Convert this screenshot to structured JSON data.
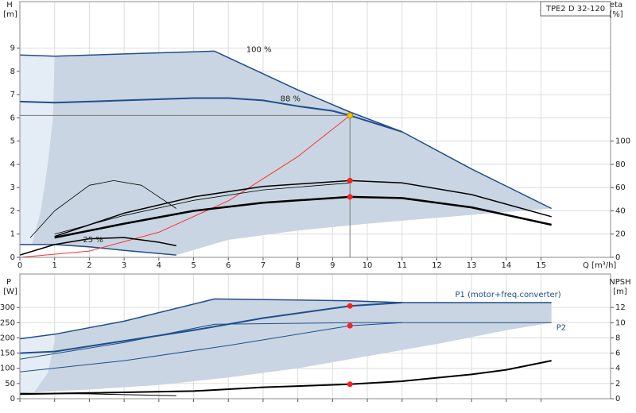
{
  "chart_data": [
    {
      "type": "line",
      "title": "TPE2 D 32-120",
      "ylabel": "H",
      "yunit": "[m]",
      "y2label": "eta",
      "y2unit": "[%]",
      "xlabel": "Q [m³/h]",
      "xlim": [
        0,
        17
      ],
      "xticks": [
        0,
        1,
        2,
        3,
        4,
        5,
        6,
        7,
        8,
        9,
        10,
        11,
        12,
        13,
        14,
        15
      ],
      "ylim": [
        0,
        11
      ],
      "yticks": [
        0,
        1,
        2,
        3,
        4,
        5,
        6,
        7,
        8,
        9
      ],
      "y2lim": [
        0,
        220
      ],
      "y2ticks": [
        0,
        20,
        40,
        60,
        80,
        100
      ],
      "grid": true,
      "series": [
        {
          "kind": "area",
          "color": "#e4edf6",
          "x": [
            0,
            1,
            0.95,
            0.8,
            0.6,
            0.35,
            0
          ],
          "values": [
            8.7,
            8.65,
            6,
            4,
            2,
            0.55,
            0.55
          ]
        },
        {
          "kind": "area",
          "color": "#c9d5e2",
          "x": [
            1,
            3,
            5.6,
            8,
            9.5,
            11,
            13,
            15.3,
            14,
            12,
            10,
            8,
            6,
            4.5,
            3,
            1.3,
            0.35,
            0.6,
            0.8,
            0.95
          ],
          "values": [
            8.65,
            8.75,
            8.87,
            7.2,
            6.25,
            5.4,
            3.8,
            2.1,
            1.95,
            1.7,
            1.45,
            1.15,
            0.75,
            0.1,
            0.3,
            0.5,
            0.55,
            2,
            4,
            6
          ]
        },
        {
          "name": "100 %",
          "kind": "line",
          "color": "#1f4e8c",
          "width": 1.5,
          "x": [
            0,
            1,
            3,
            5.6,
            8,
            9.5,
            11,
            13,
            15.3
          ],
          "values": [
            8.7,
            8.65,
            8.75,
            8.87,
            7.2,
            6.25,
            5.4,
            3.8,
            2.1
          ]
        },
        {
          "name": "88 %",
          "kind": "line",
          "color": "#1f4e8c",
          "width": 2,
          "x": [
            0,
            1,
            3,
            5,
            6,
            7,
            8,
            9,
            9.5,
            11
          ],
          "values": [
            6.7,
            6.65,
            6.75,
            6.85,
            6.85,
            6.75,
            6.5,
            6.3,
            6.1,
            5.4
          ]
        },
        {
          "name": "25 %",
          "kind": "line",
          "color": "#1f4e8c",
          "width": 1.5,
          "x": [
            0,
            1,
            2,
            3,
            4.5
          ],
          "values": [
            0.55,
            0.55,
            0.45,
            0.3,
            0.1
          ]
        },
        {
          "kind": "line",
          "color": "#ff3030",
          "width": 1,
          "x": [
            0,
            2,
            4,
            6,
            8,
            9.5
          ],
          "values": [
            0,
            0.27,
            1.08,
            2.43,
            4.33,
            6.1
          ]
        },
        {
          "kind": "line",
          "axis": "y2",
          "color": "#000000",
          "width": 2.5,
          "x": [
            1,
            3,
            5,
            7,
            9.5,
            11,
            13,
            15.3
          ],
          "values": [
            17,
            29,
            40,
            47,
            52,
            51,
            43,
            28
          ]
        },
        {
          "kind": "line",
          "axis": "y2",
          "color": "#000000",
          "width": 1.5,
          "x": [
            1,
            3,
            5,
            7,
            9.5,
            11,
            13,
            15.3
          ],
          "values": [
            18,
            38,
            52,
            61,
            66,
            64,
            54,
            35
          ]
        },
        {
          "kind": "line",
          "axis": "y2",
          "color": "#000000",
          "width": 0.8,
          "x": [
            1,
            3,
            5,
            7,
            9.5
          ],
          "values": [
            20,
            36,
            49,
            58,
            64
          ]
        },
        {
          "kind": "line",
          "axis": "y2",
          "color": "#000000",
          "width": 0.8,
          "x": [
            0.3,
            1,
            2,
            2.7,
            3.5,
            4.5
          ],
          "values": [
            17,
            40,
            62,
            66,
            62,
            42
          ]
        },
        {
          "kind": "line",
          "axis": "y2",
          "color": "#000000",
          "width": 1.5,
          "x": [
            0,
            1,
            2,
            3,
            4,
            4.5
          ],
          "values": [
            2,
            11,
            16,
            17,
            13,
            10
          ]
        }
      ],
      "points": [
        {
          "x": 9.5,
          "y": 6.1,
          "color": "#f5c400",
          "crosshair": true
        },
        {
          "x": 9.5,
          "y": 66,
          "axis": "y2",
          "color": "#ff2020"
        },
        {
          "x": 9.5,
          "y": 52,
          "axis": "y2",
          "color": "#ff2020"
        }
      ]
    },
    {
      "type": "line",
      "ylabel": "P",
      "yunit": "[W]",
      "y2label": "NPSH",
      "y2unit": "[m]",
      "xlim": [
        0,
        17
      ],
      "ylim": [
        0,
        410
      ],
      "yticks": [
        0,
        50,
        100,
        150,
        200,
        250,
        300
      ],
      "y2lim": [
        0,
        16.4
      ],
      "y2ticks": [
        0,
        2,
        4,
        6,
        8,
        10,
        12
      ],
      "grid": true,
      "series": [
        {
          "kind": "area",
          "color": "#e4edf6",
          "x": [
            0,
            1,
            1,
            0.8,
            0.4,
            0
          ],
          "values": [
            197,
            212,
            190,
            84,
            20,
            20
          ]
        },
        {
          "kind": "area",
          "color": "#c9d5e2",
          "x": [
            1,
            3,
            5.6,
            9.5,
            11,
            15.3,
            15.3,
            14,
            12,
            10,
            8,
            6,
            4,
            2,
            1,
            0.4,
            0.8,
            1
          ],
          "values": [
            212,
            255,
            328,
            322,
            316,
            316,
            250,
            225,
            180,
            140,
            100,
            70,
            45,
            30,
            25,
            20,
            84,
            190
          ]
        },
        {
          "name": "P1 (motor+freq.converter)",
          "kind": "line",
          "color": "#1f4e8c",
          "width": 1.5,
          "x": [
            0,
            1,
            3,
            5.6,
            9.5,
            11,
            15.3
          ],
          "values": [
            197,
            212,
            255,
            328,
            322,
            316,
            316
          ]
        },
        {
          "kind": "line",
          "color": "#1f4e8c",
          "width": 2,
          "x": [
            0,
            1,
            3,
            5,
            7,
            9.5,
            11
          ],
          "values": [
            150,
            155,
            190,
            225,
            265,
            305,
            316
          ]
        },
        {
          "name": "P2",
          "kind": "line",
          "color": "#1f4e8c",
          "width": 1,
          "x": [
            0,
            3,
            5.6,
            9.5,
            11,
            15.3
          ],
          "values": [
            130,
            185,
            245,
            250,
            250,
            250
          ]
        },
        {
          "kind": "line",
          "color": "#1f4e8c",
          "width": 1,
          "x": [
            0,
            3,
            6,
            9.5,
            11
          ],
          "values": [
            88,
            125,
            175,
            240,
            250
          ]
        },
        {
          "kind": "line",
          "axis": "y2",
          "color": "#000000",
          "width": 2,
          "x": [
            0,
            5,
            7,
            9.5,
            11,
            13,
            14,
            15.3
          ],
          "values": [
            0.6,
            1.0,
            1.5,
            1.9,
            2.3,
            3.2,
            3.8,
            5.0
          ]
        },
        {
          "kind": "line",
          "color": "#000000",
          "width": 1,
          "x": [
            0,
            2,
            4.5
          ],
          "values": [
            18,
            16,
            10
          ]
        }
      ],
      "points": [
        {
          "x": 9.5,
          "y": 305,
          "color": "#ff2020"
        },
        {
          "x": 9.5,
          "y": 240,
          "color": "#ff2020"
        },
        {
          "x": 9.5,
          "y": 1.9,
          "axis": "y2",
          "color": "#ff2020"
        }
      ]
    }
  ]
}
